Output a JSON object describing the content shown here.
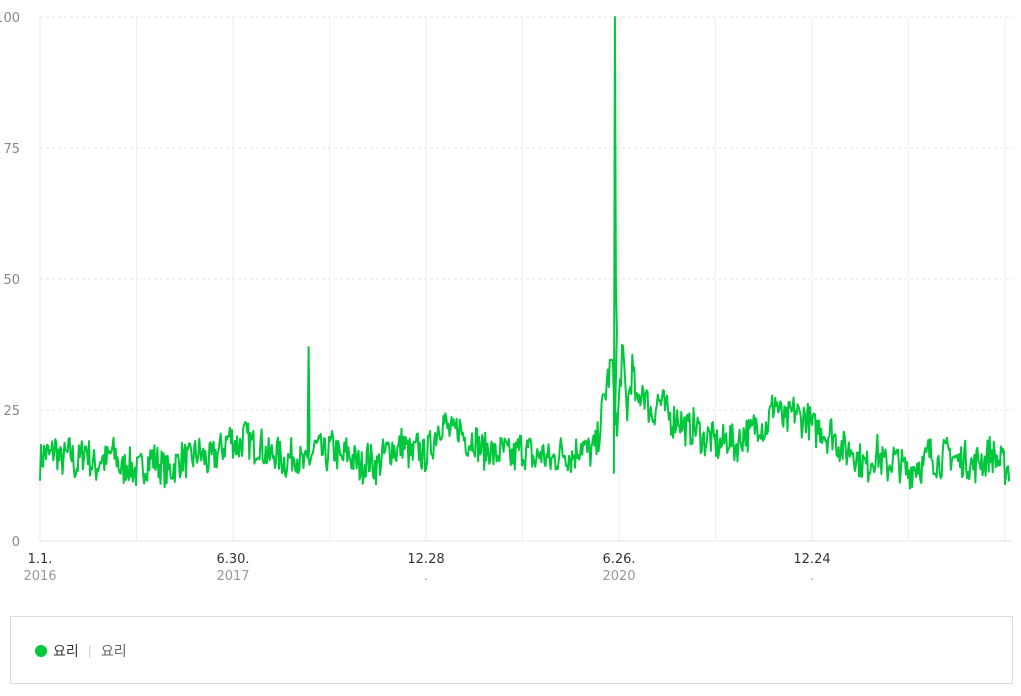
{
  "chart_data": {
    "type": "line",
    "title": "",
    "xlabel": "",
    "ylabel": "",
    "ylim": [
      0,
      100
    ],
    "yticks": [
      "0",
      "25",
      "50",
      "75",
      "100"
    ],
    "grid": true,
    "color": "#00c73c",
    "x_ticks": [
      {
        "label": "1.1.",
        "sub": "2016"
      },
      {
        "label": "6.30.",
        "sub": "2017"
      },
      {
        "label": "12.28",
        "sub": "."
      },
      {
        "label": "6.26.",
        "sub": "2020"
      },
      {
        "label": "12.24",
        "sub": "."
      }
    ],
    "date_range": [
      "2016-01-01",
      "2021-12-31"
    ],
    "series": [
      {
        "name": "요리",
        "values": [
          15,
          17,
          16,
          18,
          15,
          16,
          17,
          14,
          16,
          18,
          15,
          14,
          16,
          15,
          17,
          16,
          13,
          15,
          14,
          13,
          14,
          15,
          16,
          15,
          14,
          13,
          14,
          15,
          16,
          15,
          16,
          17,
          16,
          15,
          16,
          17,
          18,
          20,
          19,
          18,
          20,
          19,
          18,
          19,
          17,
          16,
          17,
          16,
          15,
          16,
          17,
          15,
          14,
          16,
          18,
          17,
          16,
          18,
          17,
          15,
          17,
          16,
          15,
          14,
          16,
          15,
          14,
          16,
          17,
          18,
          17,
          19,
          17,
          16,
          18,
          16,
          17,
          19,
          22,
          23,
          21,
          20,
          22,
          20,
          19,
          20,
          18,
          17,
          18,
          16,
          17,
          17,
          16,
          16,
          18,
          17,
          17,
          15,
          17,
          16,
          15,
          16,
          17,
          17,
          16,
          17,
          19,
          17,
          17,
          18,
          24,
          30,
          34,
          20,
          36,
          25,
          33,
          25,
          30,
          26,
          24,
          27,
          26,
          24,
          23,
          24,
          22,
          21,
          22,
          21,
          19,
          20,
          19,
          18,
          19,
          20,
          18,
          19,
          21,
          20,
          22,
          23,
          21,
          24,
          27,
          24,
          22,
          24,
          25,
          23,
          24,
          22,
          21,
          22,
          20,
          21,
          19,
          18,
          17,
          18,
          16,
          15,
          14,
          16,
          17,
          15,
          14,
          16,
          15,
          14,
          13,
          14,
          15,
          14,
          17,
          16,
          15,
          16,
          17,
          16,
          15,
          16,
          15,
          14,
          16,
          15,
          17,
          16,
          15,
          14
        ]
      }
    ]
  },
  "legend": {
    "primary_label": "요리",
    "secondary_label": "요리"
  }
}
